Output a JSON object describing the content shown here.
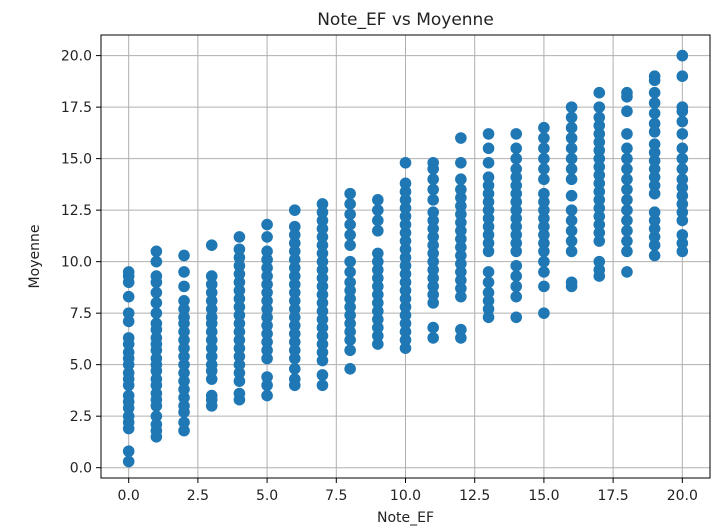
{
  "chart_data": {
    "type": "scatter",
    "title": "Note_EF vs Moyenne",
    "xlabel": "Note_EF",
    "ylabel": "Moyenne",
    "xlim": [
      -1,
      21
    ],
    "ylim": [
      -0.5,
      21
    ],
    "xticks": [
      0,
      2.5,
      5,
      7.5,
      10,
      12.5,
      15,
      17.5,
      20
    ],
    "xtick_labels": [
      "0.0",
      "2.5",
      "5.0",
      "7.5",
      "10.0",
      "12.5",
      "15.0",
      "17.5",
      "20.0"
    ],
    "yticks": [
      0,
      2.5,
      5,
      7.5,
      10,
      12.5,
      15,
      17.5,
      20
    ],
    "ytick_labels": [
      "0.0",
      "2.5",
      "5.0",
      "7.5",
      "10.0",
      "12.5",
      "15.0",
      "17.5",
      "20.0"
    ],
    "grid": true,
    "marker_color": "#1f77b4",
    "points": [
      {
        "x": 0,
        "y": [
          0.3,
          0.8,
          1.9,
          2.2,
          2.5,
          2.9,
          3.2,
          3.5,
          4.0,
          4.3,
          4.6,
          5.0,
          5.3,
          5.6,
          6.0,
          6.3,
          7.1,
          7.5,
          8.3,
          9.0,
          9.3,
          9.5
        ]
      },
      {
        "x": 1,
        "y": [
          1.5,
          1.8,
          2.1,
          2.5,
          3.0,
          3.3,
          3.6,
          4.0,
          4.3,
          4.7,
          5.0,
          5.3,
          5.7,
          6.0,
          6.3,
          6.7,
          7.0,
          7.5,
          8.0,
          8.5,
          9.0,
          9.3,
          10.0,
          10.5
        ]
      },
      {
        "x": 2,
        "y": [
          1.8,
          2.2,
          2.7,
          3.0,
          3.4,
          3.8,
          4.2,
          4.6,
          5.0,
          5.4,
          5.8,
          6.2,
          6.6,
          7.0,
          7.3,
          7.7,
          8.1,
          8.8,
          9.5,
          10.3
        ]
      },
      {
        "x": 3,
        "y": [
          3.0,
          3.3,
          3.5,
          4.3,
          4.7,
          5.0,
          5.4,
          5.8,
          6.2,
          6.6,
          7.0,
          7.3,
          7.7,
          8.1,
          8.5,
          8.9,
          9.3,
          10.8
        ]
      },
      {
        "x": 4,
        "y": [
          3.3,
          3.6,
          4.2,
          4.6,
          5.0,
          5.4,
          5.8,
          6.2,
          6.6,
          7.0,
          7.4,
          7.8,
          8.2,
          8.6,
          9.0,
          9.4,
          9.8,
          10.2,
          10.6,
          11.2
        ]
      },
      {
        "x": 5,
        "y": [
          3.5,
          4.0,
          4.4,
          5.3,
          5.7,
          6.1,
          6.5,
          6.9,
          7.3,
          7.7,
          8.1,
          8.5,
          8.9,
          9.3,
          9.7,
          10.1,
          10.5,
          11.2,
          11.8
        ]
      },
      {
        "x": 6,
        "y": [
          4.0,
          4.3,
          4.8,
          5.3,
          5.7,
          6.1,
          6.5,
          6.9,
          7.3,
          7.7,
          8.1,
          8.5,
          8.9,
          9.3,
          9.7,
          10.1,
          10.5,
          10.9,
          11.3,
          11.7,
          12.5
        ]
      },
      {
        "x": 7,
        "y": [
          4.0,
          4.5,
          5.2,
          5.6,
          6.0,
          6.4,
          6.8,
          7.2,
          7.6,
          8.0,
          8.4,
          8.8,
          9.2,
          9.6,
          10.0,
          10.4,
          10.8,
          11.2,
          11.6,
          12.0,
          12.4,
          12.8
        ]
      },
      {
        "x": 8,
        "y": [
          4.8,
          5.7,
          6.2,
          6.6,
          7.0,
          7.4,
          7.8,
          8.2,
          8.6,
          9.0,
          9.5,
          10.0,
          10.8,
          11.3,
          11.8,
          12.3,
          12.8,
          13.3
        ]
      },
      {
        "x": 9,
        "y": [
          6.0,
          6.4,
          6.8,
          7.2,
          7.6,
          8.0,
          8.4,
          8.8,
          9.2,
          9.6,
          10.0,
          10.4,
          11.5,
          12.0,
          12.5,
          13.0
        ]
      },
      {
        "x": 10,
        "y": [
          5.8,
          6.2,
          6.6,
          7.0,
          7.4,
          7.8,
          8.2,
          8.6,
          9.0,
          9.4,
          9.8,
          10.2,
          10.6,
          11.0,
          11.4,
          11.8,
          12.2,
          12.6,
          13.0,
          13.4,
          13.8,
          14.8
        ]
      },
      {
        "x": 11,
        "y": [
          6.3,
          6.8,
          8.0,
          8.4,
          8.8,
          9.2,
          9.6,
          10.0,
          10.4,
          10.8,
          11.2,
          11.6,
          12.0,
          12.4,
          13.0,
          13.5,
          14.0,
          14.5,
          14.8
        ]
      },
      {
        "x": 12,
        "y": [
          6.3,
          6.7,
          8.3,
          8.7,
          9.1,
          9.5,
          9.9,
          10.3,
          10.7,
          11.1,
          11.5,
          11.9,
          12.3,
          12.7,
          13.1,
          13.5,
          14.0,
          14.8,
          16.0
        ]
      },
      {
        "x": 13,
        "y": [
          7.3,
          7.7,
          8.1,
          8.5,
          9.0,
          9.5,
          10.5,
          10.9,
          11.3,
          11.7,
          12.1,
          12.5,
          12.9,
          13.3,
          13.7,
          14.1,
          14.8,
          15.5,
          16.2
        ]
      },
      {
        "x": 14,
        "y": [
          7.3,
          8.3,
          8.8,
          9.3,
          9.8,
          10.5,
          10.9,
          11.3,
          11.7,
          12.1,
          12.5,
          12.9,
          13.3,
          13.7,
          14.1,
          14.5,
          15.0,
          15.5,
          16.2
        ]
      },
      {
        "x": 15,
        "y": [
          7.5,
          8.8,
          9.5,
          10.0,
          10.5,
          10.9,
          11.3,
          11.7,
          12.1,
          12.5,
          12.9,
          13.3,
          14.0,
          14.5,
          15.0,
          15.5,
          16.0,
          16.5
        ]
      },
      {
        "x": 16,
        "y": [
          8.8,
          9.0,
          10.5,
          11.0,
          11.5,
          12.0,
          12.5,
          13.2,
          14.0,
          14.5,
          15.0,
          15.5,
          16.0,
          16.5,
          17.0,
          17.5
        ]
      },
      {
        "x": 17,
        "y": [
          9.3,
          9.6,
          10.0,
          11.0,
          11.4,
          11.8,
          12.2,
          12.6,
          13.0,
          13.4,
          13.8,
          14.2,
          14.6,
          15.0,
          15.4,
          15.8,
          16.2,
          16.6,
          17.0,
          17.5,
          18.2
        ]
      },
      {
        "x": 18,
        "y": [
          9.5,
          10.5,
          11.0,
          11.5,
          12.0,
          12.5,
          13.0,
          13.5,
          14.0,
          14.5,
          15.0,
          15.5,
          16.2,
          17.3,
          18.0,
          18.2
        ]
      },
      {
        "x": 19,
        "y": [
          10.3,
          10.8,
          11.2,
          11.6,
          12.0,
          12.4,
          13.3,
          13.7,
          14.1,
          14.5,
          14.9,
          15.3,
          15.7,
          16.3,
          16.7,
          17.2,
          17.7,
          18.2,
          18.8,
          19.0
        ]
      },
      {
        "x": 20,
        "y": [
          10.5,
          10.9,
          11.3,
          12.0,
          12.4,
          12.8,
          13.2,
          13.6,
          14.0,
          14.5,
          15.0,
          15.5,
          16.2,
          16.8,
          17.3,
          17.5,
          19.0,
          20.0
        ]
      }
    ]
  }
}
